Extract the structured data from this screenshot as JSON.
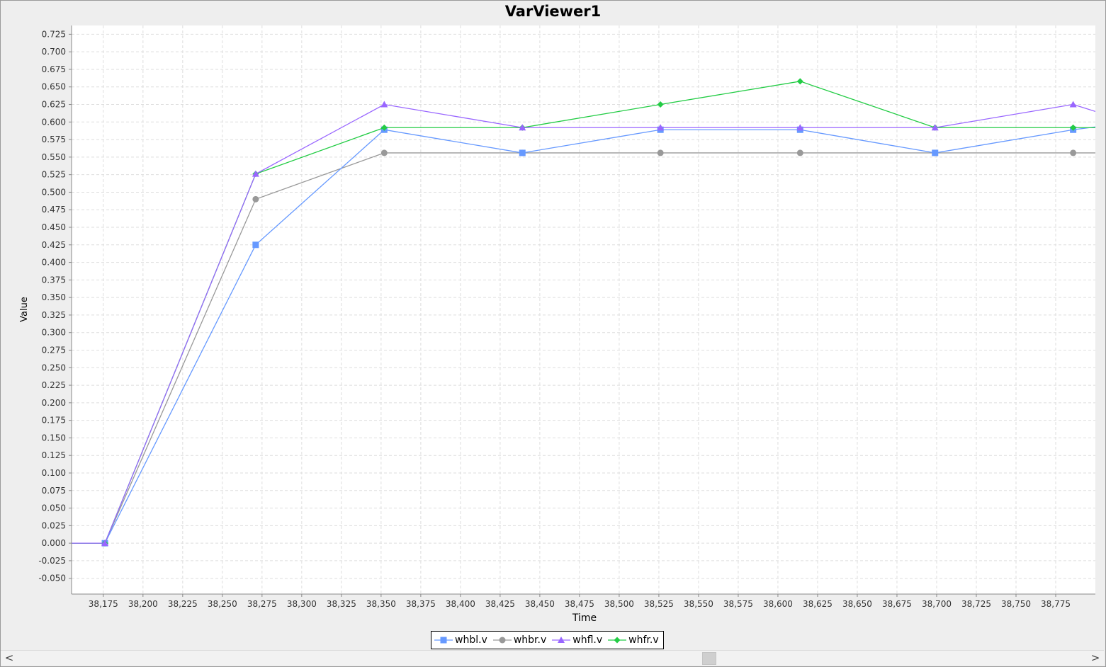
{
  "chart_data": {
    "type": "line",
    "title": "VarViewer1",
    "xlabel": "Time",
    "ylabel": "Value",
    "xlim": [
      38155,
      38800
    ],
    "ylim": [
      -0.0725,
      0.7375
    ],
    "x_ticks": [
      38175,
      38200,
      38225,
      38250,
      38275,
      38300,
      38325,
      38350,
      38375,
      38400,
      38425,
      38450,
      38475,
      38500,
      38525,
      38550,
      38575,
      38600,
      38625,
      38650,
      38675,
      38700,
      38725,
      38750,
      38775
    ],
    "y_ticks": [
      -0.05,
      -0.025,
      0,
      0.025,
      0.05,
      0.075,
      0.1,
      0.125,
      0.15,
      0.175,
      0.2,
      0.225,
      0.25,
      0.275,
      0.3,
      0.325,
      0.35,
      0.375,
      0.4,
      0.425,
      0.45,
      0.475,
      0.5,
      0.525,
      0.55,
      0.575,
      0.6,
      0.625,
      0.65,
      0.675,
      0.7,
      0.725
    ],
    "grid": true,
    "legend_position": "bottom",
    "series": [
      {
        "name": "whbr.v",
        "color": "#999999",
        "marker": "circle",
        "points": [
          [
            38155,
            0
          ],
          [
            38176,
            0
          ],
          [
            38271,
            0.49
          ],
          [
            38352,
            0.556
          ],
          [
            38439,
            0.556
          ],
          [
            38526,
            0.556
          ],
          [
            38614,
            0.556
          ],
          [
            38699,
            0.556
          ],
          [
            38786,
            0.556
          ],
          [
            38800,
            0.556
          ]
        ]
      },
      {
        "name": "whbl.v",
        "color": "#6699ff",
        "marker": "square",
        "points": [
          [
            38155,
            0
          ],
          [
            38176,
            0
          ],
          [
            38271,
            0.425
          ],
          [
            38352,
            0.589
          ],
          [
            38439,
            0.556
          ],
          [
            38526,
            0.589
          ],
          [
            38614,
            0.589
          ],
          [
            38699,
            0.556
          ],
          [
            38786,
            0.589
          ],
          [
            38800,
            0.593
          ]
        ]
      },
      {
        "name": "whfr.v",
        "color": "#22cc44",
        "marker": "diamond",
        "points": [
          [
            38155,
            0
          ],
          [
            38176,
            0
          ],
          [
            38271,
            0.526
          ],
          [
            38352,
            0.592
          ],
          [
            38439,
            0.592
          ],
          [
            38526,
            0.625
          ],
          [
            38614,
            0.658
          ],
          [
            38699,
            0.592
          ],
          [
            38786,
            0.592
          ],
          [
            38800,
            0.592
          ]
        ]
      },
      {
        "name": "whfl.v",
        "color": "#9966ff",
        "marker": "triangle",
        "points": [
          [
            38155,
            0
          ],
          [
            38176,
            0
          ],
          [
            38271,
            0.526
          ],
          [
            38352,
            0.625
          ],
          [
            38439,
            0.592
          ],
          [
            38526,
            0.592
          ],
          [
            38614,
            0.592
          ],
          [
            38699,
            0.592
          ],
          [
            38786,
            0.625
          ],
          [
            38800,
            0.615
          ]
        ]
      }
    ],
    "legend": [
      {
        "name": "whbl.v",
        "color": "#6699ff",
        "marker": "square"
      },
      {
        "name": "whbr.v",
        "color": "#999999",
        "marker": "circle"
      },
      {
        "name": "whfl.v",
        "color": "#9966ff",
        "marker": "triangle"
      },
      {
        "name": "whfr.v",
        "color": "#22cc44",
        "marker": "diamond"
      }
    ]
  },
  "scrollbar": {
    "left_arrow": "<",
    "right_arrow": ">",
    "thumb_fraction": 0.64
  }
}
